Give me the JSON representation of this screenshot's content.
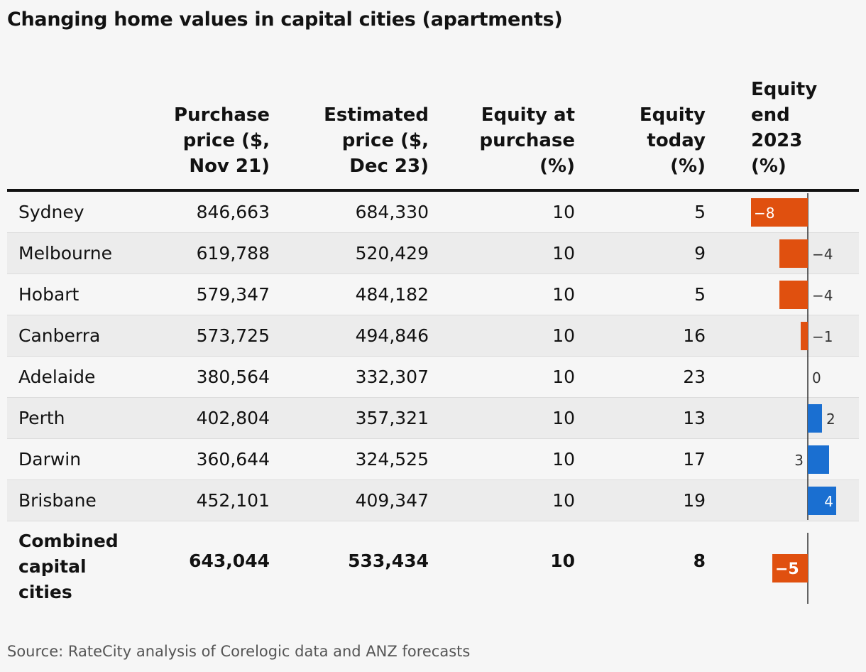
{
  "title": "Changing home values in capital cities (apartments)",
  "source": "Source: RateCity analysis of Corelogic data and ANZ forecasts",
  "colors": {
    "negative": "#e0500f",
    "positive": "#1a6fd1",
    "axis": "#333333"
  },
  "headers": {
    "purchase": "Purchase\nprice ($,\nNov 21)",
    "estimated": "Estimated\nprice ($,\nDec 23)",
    "equity_purchase": "Equity at\npurchase\n(%)",
    "equity_today": "Equity\ntoday\n(%)",
    "equity_end": "Equity\nend\n2023\n(%)"
  },
  "rows": [
    {
      "city": "Sydney",
      "purchase": "846,663",
      "estimated": "684,330",
      "equity_purchase": "10",
      "equity_today": "5",
      "equity_end_label": "−8"
    },
    {
      "city": "Melbourne",
      "purchase": "619,788",
      "estimated": "520,429",
      "equity_purchase": "10",
      "equity_today": "9",
      "equity_end_label": "−4"
    },
    {
      "city": "Hobart",
      "purchase": "579,347",
      "estimated": "484,182",
      "equity_purchase": "10",
      "equity_today": "5",
      "equity_end_label": "−4"
    },
    {
      "city": "Canberra",
      "purchase": "573,725",
      "estimated": "494,846",
      "equity_purchase": "10",
      "equity_today": "16",
      "equity_end_label": "−1"
    },
    {
      "city": "Adelaide",
      "purchase": "380,564",
      "estimated": "332,307",
      "equity_purchase": "10",
      "equity_today": "23",
      "equity_end_label": "0"
    },
    {
      "city": "Perth",
      "purchase": "402,804",
      "estimated": "357,321",
      "equity_purchase": "10",
      "equity_today": "13",
      "equity_end_label": "2"
    },
    {
      "city": "Darwin",
      "purchase": "360,644",
      "estimated": "324,525",
      "equity_purchase": "10",
      "equity_today": "17",
      "equity_end_label": "3"
    },
    {
      "city": "Brisbane",
      "purchase": "452,101",
      "estimated": "409,347",
      "equity_purchase": "10",
      "equity_today": "19",
      "equity_end_label": "4"
    }
  ],
  "total": {
    "city": "Combined\ncapital\ncities",
    "purchase": "643,044",
    "estimated": "533,434",
    "equity_purchase": "10",
    "equity_today": "8",
    "equity_end_label": "−5"
  },
  "chart_data": {
    "type": "bar",
    "orientation": "horizontal",
    "categories": [
      "Sydney",
      "Melbourne",
      "Hobart",
      "Canberra",
      "Adelaide",
      "Perth",
      "Darwin",
      "Brisbane",
      "Combined capital cities"
    ],
    "values": [
      -8,
      -4,
      -4,
      -1,
      0,
      2,
      3,
      4,
      -5
    ],
    "title": "Equity end 2023 (%)"
  }
}
